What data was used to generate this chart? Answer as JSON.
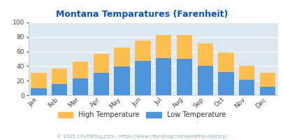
{
  "title": "Montana Temparatures (Farenheit)",
  "months": [
    "Jan",
    "Feb",
    "Mar",
    "Apr",
    "May",
    "Jun",
    "Jul",
    "Aug",
    "Sep",
    "Oct",
    "Nov",
    "Dec"
  ],
  "low_temps": [
    10,
    15,
    23,
    31,
    39,
    47,
    51,
    50,
    40,
    32,
    21,
    12
  ],
  "high_temps": [
    31,
    37,
    46,
    57,
    65,
    75,
    83,
    83,
    71,
    59,
    40,
    31
  ],
  "low_color": "#4d94db",
  "high_color": "#ffbe4d",
  "bg_color": "#dde8f0",
  "title_color": "#0055cc",
  "footer_text": "© 2025 CityRating.com - https://www.cityrating.com/weather-history/",
  "footer_color": "#88aacc",
  "legend_high": "High Temperature",
  "legend_low": "Low Temperature",
  "legend_text_color": "#333333",
  "ylim": [
    0,
    100
  ],
  "yticks": [
    0,
    20,
    40,
    60,
    80,
    100
  ],
  "title_fontsize": 9.0,
  "tick_fontsize": 6.5,
  "legend_fontsize": 7.0,
  "footer_fontsize": 5.0,
  "bar_width": 0.75
}
